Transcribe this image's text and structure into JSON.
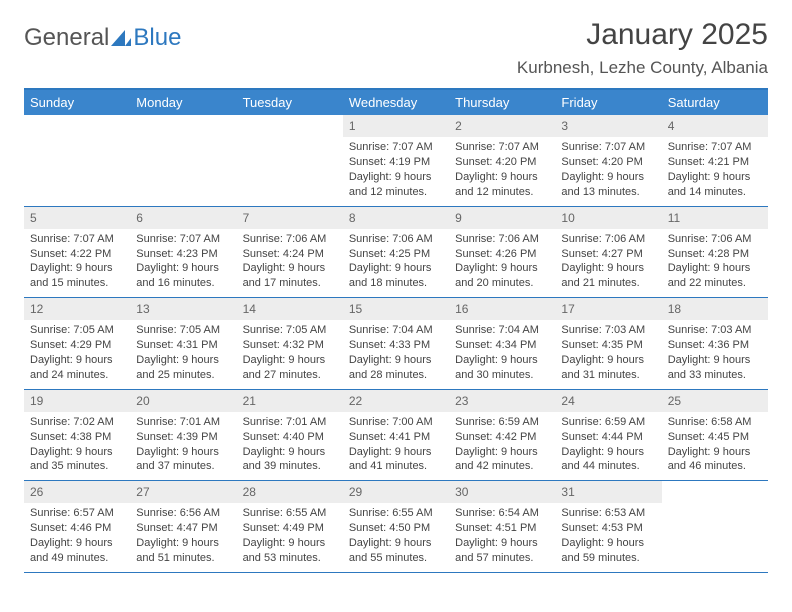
{
  "logo": {
    "text1": "General",
    "text2": "Blue",
    "mark_color": "#2d78bf"
  },
  "header": {
    "month_title": "January 2025",
    "location": "Kurbnesh, Lezhe County, Albania"
  },
  "colors": {
    "header_bar": "#3a85cc",
    "border": "#2d78bf",
    "daynum_bg": "#ededed",
    "text": "#444444"
  },
  "day_names": [
    "Sunday",
    "Monday",
    "Tuesday",
    "Wednesday",
    "Thursday",
    "Friday",
    "Saturday"
  ],
  "weeks": [
    [
      null,
      null,
      null,
      {
        "n": "1",
        "sr": "7:07 AM",
        "ss": "4:19 PM",
        "dl": "9 hours and 12 minutes."
      },
      {
        "n": "2",
        "sr": "7:07 AM",
        "ss": "4:20 PM",
        "dl": "9 hours and 12 minutes."
      },
      {
        "n": "3",
        "sr": "7:07 AM",
        "ss": "4:20 PM",
        "dl": "9 hours and 13 minutes."
      },
      {
        "n": "4",
        "sr": "7:07 AM",
        "ss": "4:21 PM",
        "dl": "9 hours and 14 minutes."
      }
    ],
    [
      {
        "n": "5",
        "sr": "7:07 AM",
        "ss": "4:22 PM",
        "dl": "9 hours and 15 minutes."
      },
      {
        "n": "6",
        "sr": "7:07 AM",
        "ss": "4:23 PM",
        "dl": "9 hours and 16 minutes."
      },
      {
        "n": "7",
        "sr": "7:06 AM",
        "ss": "4:24 PM",
        "dl": "9 hours and 17 minutes."
      },
      {
        "n": "8",
        "sr": "7:06 AM",
        "ss": "4:25 PM",
        "dl": "9 hours and 18 minutes."
      },
      {
        "n": "9",
        "sr": "7:06 AM",
        "ss": "4:26 PM",
        "dl": "9 hours and 20 minutes."
      },
      {
        "n": "10",
        "sr": "7:06 AM",
        "ss": "4:27 PM",
        "dl": "9 hours and 21 minutes."
      },
      {
        "n": "11",
        "sr": "7:06 AM",
        "ss": "4:28 PM",
        "dl": "9 hours and 22 minutes."
      }
    ],
    [
      {
        "n": "12",
        "sr": "7:05 AM",
        "ss": "4:29 PM",
        "dl": "9 hours and 24 minutes."
      },
      {
        "n": "13",
        "sr": "7:05 AM",
        "ss": "4:31 PM",
        "dl": "9 hours and 25 minutes."
      },
      {
        "n": "14",
        "sr": "7:05 AM",
        "ss": "4:32 PM",
        "dl": "9 hours and 27 minutes."
      },
      {
        "n": "15",
        "sr": "7:04 AM",
        "ss": "4:33 PM",
        "dl": "9 hours and 28 minutes."
      },
      {
        "n": "16",
        "sr": "7:04 AM",
        "ss": "4:34 PM",
        "dl": "9 hours and 30 minutes."
      },
      {
        "n": "17",
        "sr": "7:03 AM",
        "ss": "4:35 PM",
        "dl": "9 hours and 31 minutes."
      },
      {
        "n": "18",
        "sr": "7:03 AM",
        "ss": "4:36 PM",
        "dl": "9 hours and 33 minutes."
      }
    ],
    [
      {
        "n": "19",
        "sr": "7:02 AM",
        "ss": "4:38 PM",
        "dl": "9 hours and 35 minutes."
      },
      {
        "n": "20",
        "sr": "7:01 AM",
        "ss": "4:39 PM",
        "dl": "9 hours and 37 minutes."
      },
      {
        "n": "21",
        "sr": "7:01 AM",
        "ss": "4:40 PM",
        "dl": "9 hours and 39 minutes."
      },
      {
        "n": "22",
        "sr": "7:00 AM",
        "ss": "4:41 PM",
        "dl": "9 hours and 41 minutes."
      },
      {
        "n": "23",
        "sr": "6:59 AM",
        "ss": "4:42 PM",
        "dl": "9 hours and 42 minutes."
      },
      {
        "n": "24",
        "sr": "6:59 AM",
        "ss": "4:44 PM",
        "dl": "9 hours and 44 minutes."
      },
      {
        "n": "25",
        "sr": "6:58 AM",
        "ss": "4:45 PM",
        "dl": "9 hours and 46 minutes."
      }
    ],
    [
      {
        "n": "26",
        "sr": "6:57 AM",
        "ss": "4:46 PM",
        "dl": "9 hours and 49 minutes."
      },
      {
        "n": "27",
        "sr": "6:56 AM",
        "ss": "4:47 PM",
        "dl": "9 hours and 51 minutes."
      },
      {
        "n": "28",
        "sr": "6:55 AM",
        "ss": "4:49 PM",
        "dl": "9 hours and 53 minutes."
      },
      {
        "n": "29",
        "sr": "6:55 AM",
        "ss": "4:50 PM",
        "dl": "9 hours and 55 minutes."
      },
      {
        "n": "30",
        "sr": "6:54 AM",
        "ss": "4:51 PM",
        "dl": "9 hours and 57 minutes."
      },
      {
        "n": "31",
        "sr": "6:53 AM",
        "ss": "4:53 PM",
        "dl": "9 hours and 59 minutes."
      },
      null
    ]
  ],
  "labels": {
    "sunrise": "Sunrise:",
    "sunset": "Sunset:",
    "daylight": "Daylight:"
  }
}
